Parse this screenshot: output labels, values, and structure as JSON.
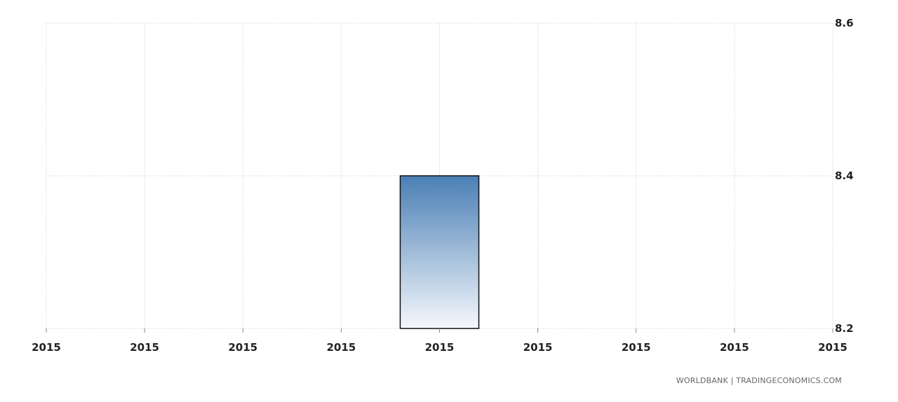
{
  "chart_data": {
    "type": "bar",
    "x_tick_labels": [
      "2015",
      "2015",
      "2015",
      "2015",
      "2015",
      "2015",
      "2015",
      "2015",
      "2015"
    ],
    "bars": [
      {
        "category": "2015",
        "tick_index": 4,
        "value": 8.4
      }
    ],
    "y_ticks": [
      "8.2",
      "8.4",
      "8.6"
    ],
    "ylim": [
      8.2,
      8.6
    ],
    "y_axis_side": "right",
    "grid": true,
    "bar_gradient": {
      "top": "#4a7fb5",
      "bottom": "#f5f8fc"
    },
    "bar_outline": "#111111",
    "title": "",
    "xlabel": "",
    "ylabel": ""
  },
  "source": "WORLDBANK | TRADINGECONOMICS.COM"
}
